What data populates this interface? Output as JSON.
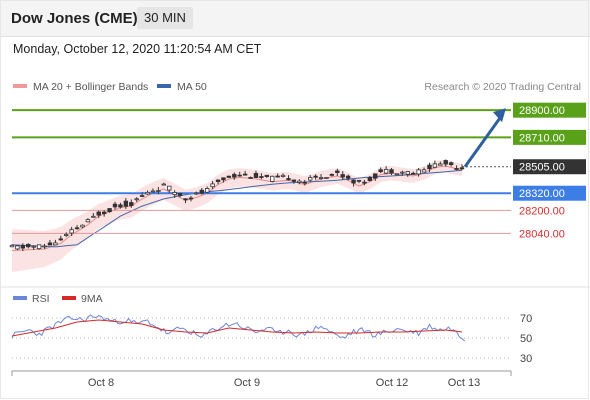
{
  "header": {
    "title": "Dow Jones (CME)",
    "interval": "30 MIN"
  },
  "datetime": "Monday, October 12, 2020 11:20:54 AM CET",
  "colors": {
    "candle_up": "#ffffff",
    "candle_down": "#333333",
    "bollinger": "#fbd7d7",
    "ma20": "#e88a8a",
    "ma50": "#4466aa",
    "resistance": "#5aa11a",
    "support": "#3d7ee6",
    "minor_support": "#e09999",
    "current": "#333333",
    "rsi": "#6a86d8",
    "rsi_ma": "#d42a2a",
    "arrow": "#2f5f9e"
  },
  "chart_data": [
    {
      "type": "candlestick",
      "legend": [
        {
          "name": "MA 20 + Bollinger Bands",
          "color": "#ef9a9a"
        },
        {
          "name": "MA 50",
          "color": "#3a66aa"
        }
      ],
      "credit": "Research © 2020 Trading Central",
      "x_ticks": [
        "Oct 8",
        "Oct 9",
        "Oct 12",
        "Oct 13"
      ],
      "ylim": [
        27700,
        28985
      ],
      "levels": [
        {
          "value": 28900.0,
          "label": "28900.00",
          "kind": "resistance"
        },
        {
          "value": 28710.0,
          "label": "28710.00",
          "kind": "resistance"
        },
        {
          "value": 28505.0,
          "label": "28505.00",
          "kind": "current"
        },
        {
          "value": 28320.0,
          "label": "28320.00",
          "kind": "support"
        },
        {
          "value": 28200.0,
          "label": "28200.00",
          "kind": "minor_support"
        },
        {
          "value": 28040.0,
          "label": "28040.00",
          "kind": "minor_support"
        }
      ],
      "anchors": [
        [
          0,
          27940
        ],
        [
          6,
          27950
        ],
        [
          9,
          27990
        ],
        [
          11,
          28050
        ],
        [
          14,
          28120
        ],
        [
          16,
          28180
        ],
        [
          18,
          28210
        ],
        [
          20,
          28240
        ],
        [
          22,
          28250
        ],
        [
          24,
          28300
        ],
        [
          26,
          28340
        ],
        [
          28,
          28370
        ],
        [
          30,
          28330
        ],
        [
          32,
          28290
        ],
        [
          34,
          28310
        ],
        [
          36,
          28340
        ],
        [
          38,
          28400
        ],
        [
          40,
          28440
        ],
        [
          42,
          28450
        ],
        [
          45,
          28440
        ],
        [
          48,
          28420
        ],
        [
          51,
          28430
        ],
        [
          54,
          28400
        ],
        [
          57,
          28440
        ],
        [
          60,
          28460
        ],
        [
          62,
          28430
        ],
        [
          64,
          28390
        ],
        [
          66,
          28420
        ],
        [
          68,
          28470
        ],
        [
          70,
          28480
        ],
        [
          72,
          28470
        ],
        [
          74,
          28460
        ],
        [
          76,
          28480
        ],
        [
          78,
          28520
        ],
        [
          80,
          28530
        ],
        [
          82,
          28510
        ],
        [
          83,
          28505
        ]
      ],
      "ma50_anchors": [
        [
          0,
          27960
        ],
        [
          8,
          27945
        ],
        [
          12,
          27960
        ],
        [
          16,
          28060
        ],
        [
          20,
          28160
        ],
        [
          24,
          28230
        ],
        [
          28,
          28280
        ],
        [
          32,
          28310
        ],
        [
          36,
          28330
        ],
        [
          40,
          28345
        ],
        [
          45,
          28370
        ],
        [
          50,
          28390
        ],
        [
          55,
          28400
        ],
        [
          60,
          28410
        ],
        [
          65,
          28430
        ],
        [
          70,
          28440
        ],
        [
          75,
          28455
        ],
        [
          80,
          28470
        ],
        [
          83,
          28480
        ]
      ],
      "forecast_arrow": {
        "from": 28505,
        "to": 28900
      }
    },
    {
      "type": "line",
      "legend": [
        {
          "name": "RSI",
          "color": "#6a86d8"
        },
        {
          "name": "9MA",
          "color": "#d42a2a"
        }
      ],
      "ylim": [
        20,
        80
      ],
      "y_ticks": [
        70,
        50,
        30
      ],
      "rsi_anchors": [
        [
          0,
          52
        ],
        [
          3,
          58
        ],
        [
          5,
          54
        ],
        [
          7,
          60
        ],
        [
          9,
          66
        ],
        [
          11,
          70
        ],
        [
          13,
          68
        ],
        [
          15,
          72
        ],
        [
          17,
          70
        ],
        [
          19,
          66
        ],
        [
          21,
          68
        ],
        [
          23,
          64
        ],
        [
          25,
          67
        ],
        [
          27,
          60
        ],
        [
          29,
          54
        ],
        [
          31,
          60
        ],
        [
          33,
          56
        ],
        [
          35,
          50
        ],
        [
          37,
          58
        ],
        [
          39,
          62
        ],
        [
          41,
          65
        ],
        [
          43,
          60
        ],
        [
          45,
          56
        ],
        [
          47,
          60
        ],
        [
          49,
          54
        ],
        [
          51,
          58
        ],
        [
          53,
          52
        ],
        [
          55,
          57
        ],
        [
          57,
          62
        ],
        [
          59,
          55
        ],
        [
          61,
          50
        ],
        [
          63,
          56
        ],
        [
          65,
          58
        ],
        [
          67,
          53
        ],
        [
          69,
          56
        ],
        [
          71,
          59
        ],
        [
          73,
          57
        ],
        [
          75,
          55
        ],
        [
          77,
          62
        ],
        [
          79,
          58
        ],
        [
          81,
          60
        ],
        [
          83,
          50
        ]
      ],
      "rsi_ma_anchors": [
        [
          0,
          52
        ],
        [
          4,
          56
        ],
        [
          8,
          60
        ],
        [
          12,
          66
        ],
        [
          16,
          68
        ],
        [
          20,
          66
        ],
        [
          24,
          64
        ],
        [
          28,
          58
        ],
        [
          32,
          56
        ],
        [
          36,
          55
        ],
        [
          40,
          60
        ],
        [
          44,
          58
        ],
        [
          48,
          56
        ],
        [
          52,
          55
        ],
        [
          56,
          56
        ],
        [
          60,
          55
        ],
        [
          64,
          55
        ],
        [
          68,
          56
        ],
        [
          72,
          56
        ],
        [
          76,
          57
        ],
        [
          80,
          58
        ],
        [
          83,
          56
        ]
      ]
    }
  ]
}
